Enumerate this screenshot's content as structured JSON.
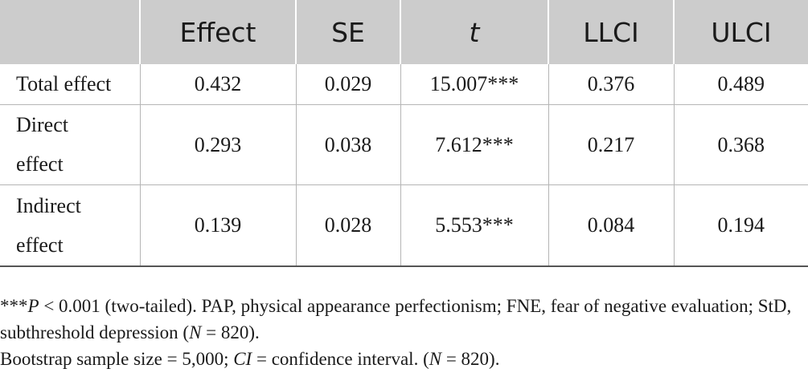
{
  "table": {
    "headers": [
      "",
      "Effect",
      "SE",
      "t",
      "LLCI",
      "ULCI"
    ],
    "rows": [
      {
        "label": "Total effect",
        "values": [
          "0.432",
          "0.029",
          "15.007***",
          "0.376",
          "0.489"
        ]
      },
      {
        "label_lines": [
          "Direct",
          "effect"
        ],
        "values": [
          "0.293",
          "0.038",
          "7.612***",
          "0.217",
          "0.368"
        ]
      },
      {
        "label_lines": [
          "Indirect",
          "effect"
        ],
        "values": [
          "0.139",
          "0.028",
          "5.553***",
          "0.084",
          "0.194"
        ]
      }
    ]
  },
  "notes": {
    "line1_prefix": "***",
    "line1_p": "P",
    "line1_rest": " < 0.001 (two-tailed). PAP, physical appearance perfectionism; FNE, fear of negative evaluation; StD, subthreshold depression (",
    "line1_n": "N",
    "line1_end": " = 820).",
    "line2_prefix": "Bootstrap sample size = 5,000; ",
    "line2_ci": "CI",
    "line2_rest": " = confidence interval. (",
    "line2_n": "N",
    "line2_end": " = 820)."
  }
}
